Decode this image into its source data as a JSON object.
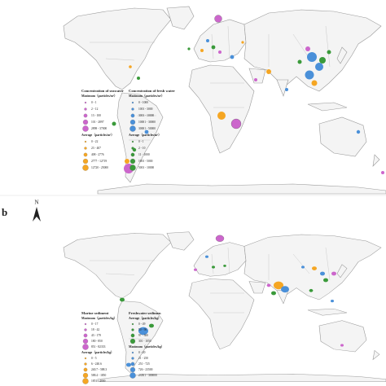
{
  "panel_a": {
    "seawater": {
      "title": "Concentration of seawater",
      "maximum_heading": "Maximum（particles/m³）",
      "maximum_items": [
        "0 - 1",
        "2 - 12",
        "13 - 100",
        "101 - 2897",
        "2898 - 37000"
      ],
      "average_heading": "Average（particles/m³）",
      "average_items": [
        "0 - 22",
        "23 - 407",
        "408 - 2776",
        "2777 - 12719",
        "12720 - 25000"
      ]
    },
    "freshwater": {
      "title": "Concentration of fresh water",
      "maximum_heading": "Maximum（particles/m³）",
      "maximum_items": [
        "0 - 1000",
        "1001 - 3000",
        "3001 - 10000",
        "10001 - 30000",
        "30001 - 50000"
      ],
      "average_heading": "Average（particles/m³）",
      "average_items": [
        "0 - 1",
        "2 - 10",
        "11 - 1000",
        "1001 - 5000",
        "5001 - 10000"
      ]
    }
  },
  "panel_b": {
    "label": "b",
    "north": "N",
    "marine": {
      "title": "Marine sediment",
      "maximum_heading": "Maximum（particles/kg）",
      "maximum_items": [
        "0 - 17",
        "18 - 42",
        "43 - 179",
        "180 - 850",
        "851 - 82333"
      ],
      "average_heading": "Average（particles/kg）",
      "average_items": [
        "0 - 5",
        "6 - 240.6",
        "240.7 - 588.3",
        "588.4 - 1850",
        "1851 - 4000"
      ]
    },
    "freshwater": {
      "title": "Freshwater sedimen",
      "maximum_heading": "Average（particles/kg）",
      "maximum_items": [
        "0 - 49",
        "50 - 96",
        "97 - 300",
        "301 - 1050"
      ],
      "average_heading": "Maximum（particles/kg）",
      "average_items": [
        "0 - 20",
        "21 - 250",
        "251 - 725",
        "726 - 23500",
        "23501 - 300000"
      ]
    }
  }
}
